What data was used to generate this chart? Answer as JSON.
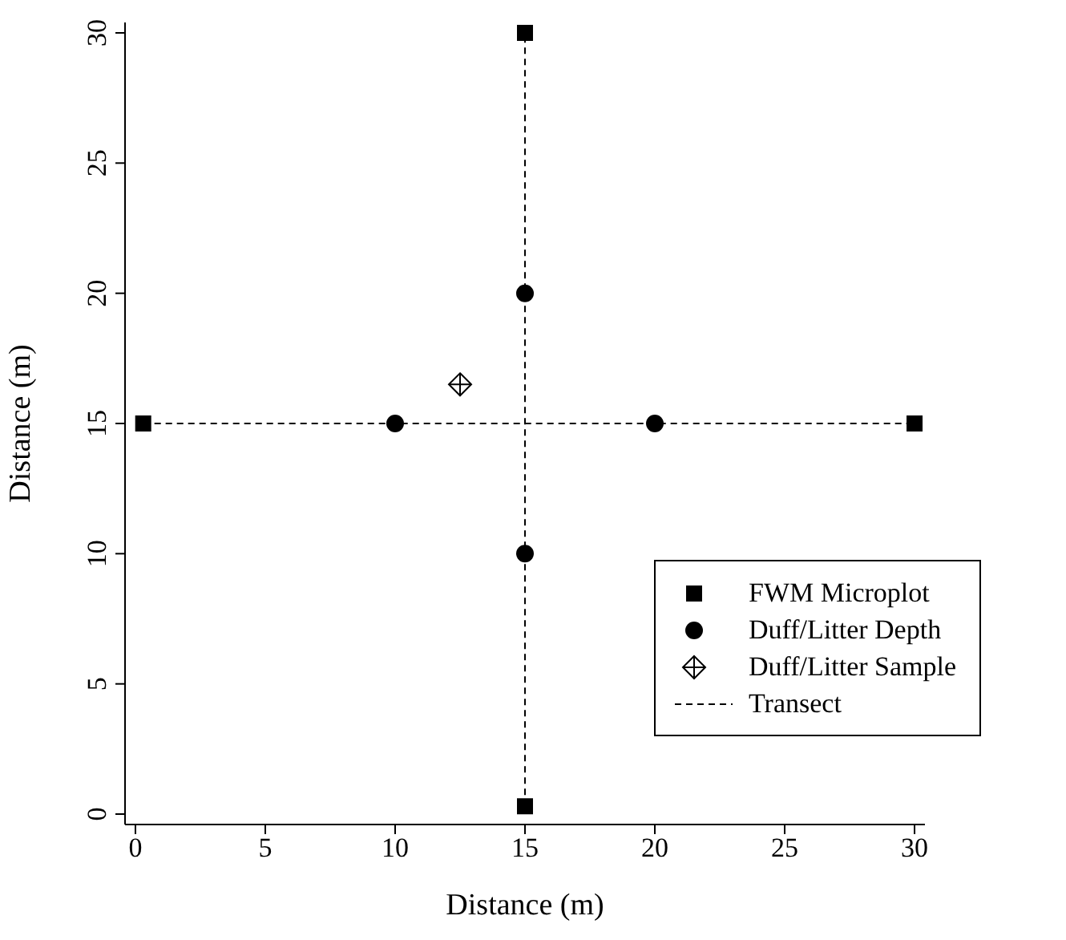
{
  "chart_data": {
    "type": "scatter",
    "xlabel": "Distance (m)",
    "ylabel": "Distance (m)",
    "xlim": [
      -0.4,
      30.4
    ],
    "ylim": [
      -0.4,
      30.4
    ],
    "xticks": [
      0,
      5,
      10,
      15,
      20,
      25,
      30
    ],
    "yticks": [
      0,
      5,
      10,
      15,
      20,
      25,
      30
    ],
    "legend": "bottom right",
    "series": [
      {
        "name": "FWM Microplot",
        "color": "#000000",
        "marker": "square",
        "x": [
          0.3,
          30,
          15,
          15
        ],
        "values": [
          15,
          15,
          30,
          0.3
        ]
      },
      {
        "name": "Duff/Litter Depth",
        "color": "#000000",
        "marker": "circle",
        "x": [
          10,
          20,
          15,
          15
        ],
        "values": [
          15,
          15,
          20,
          10
        ]
      },
      {
        "name": "Duff/Litter Sample",
        "color": "#000000",
        "marker": "diamond",
        "x": [
          12.5
        ],
        "values": [
          16.5
        ]
      },
      {
        "name": "Transect",
        "type": "line",
        "color": "#000000",
        "marker": "none",
        "line_style": "dashed",
        "x": [
          0.3,
          30
        ],
        "values": [
          15,
          15
        ]
      },
      {
        "type": "line",
        "color": "#000000",
        "marker": "none",
        "line_style": "dashed",
        "x": [
          15,
          15
        ],
        "values": [
          0.3,
          30
        ]
      }
    ]
  }
}
